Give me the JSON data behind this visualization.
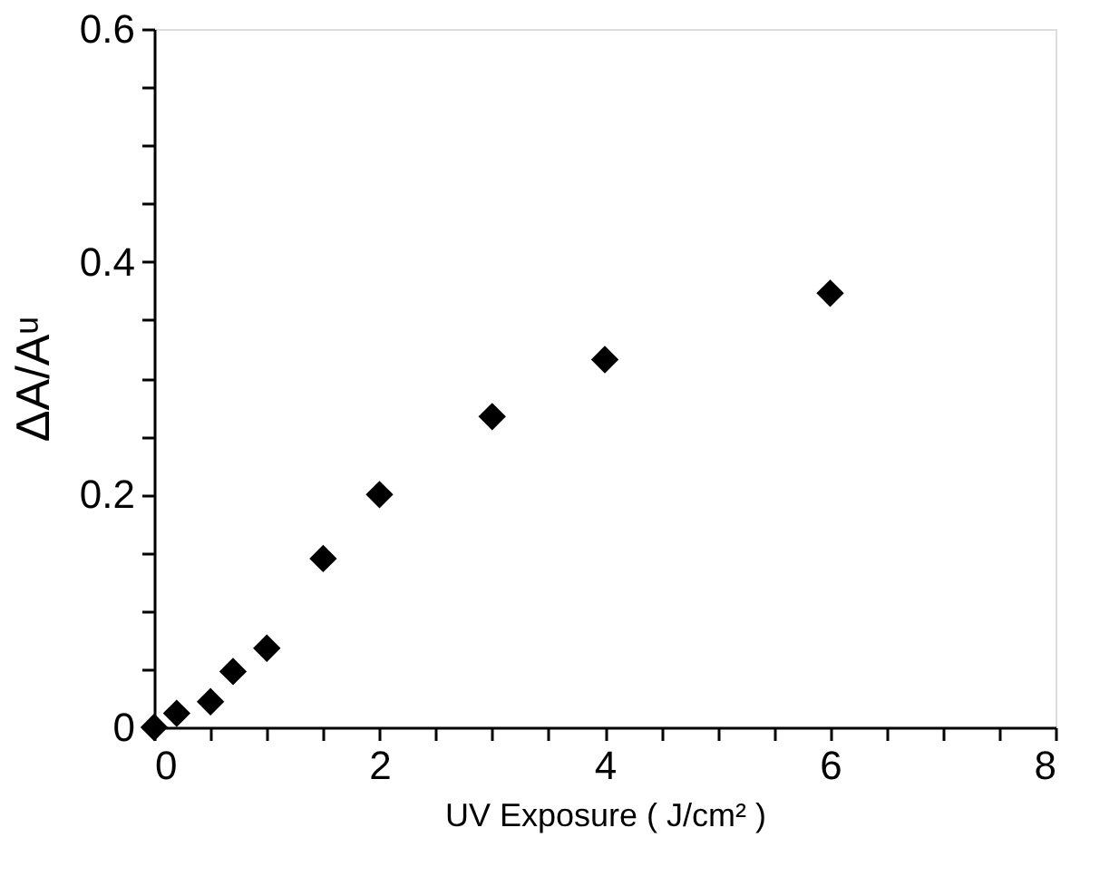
{
  "chart_data": {
    "type": "scatter",
    "xlabel": "UV  Exposure  ( J/cm² )",
    "ylabel": "ΔA/Aᵘ",
    "x": [
      0,
      0.2,
      0.5,
      0.7,
      1.0,
      1.5,
      2,
      3,
      4,
      6
    ],
    "series": [
      {
        "color": "#000000",
        "values": [
          0,
          0.012,
          0.022,
          0.048,
          0.068,
          0.145,
          0.2,
          0.267,
          0.316,
          0.373
        ]
      }
    ],
    "marker": "diamond",
    "grid": false,
    "xlim": [
      0,
      8
    ],
    "ylim": [
      0,
      0.6
    ],
    "xticks": [
      0,
      {
        "value": 0.5,
        "label": null
      },
      {
        "value": 1,
        "label": null
      },
      {
        "value": 1.5,
        "label": null
      },
      2,
      {
        "value": 2.5,
        "label": null
      },
      {
        "value": 3,
        "label": null
      },
      {
        "value": 3.5,
        "label": null
      },
      4,
      {
        "value": 4.5,
        "label": null
      },
      {
        "value": 5,
        "label": null
      },
      {
        "value": 5.5,
        "label": null
      },
      6,
      {
        "value": 6.5,
        "label": null
      },
      {
        "value": 7,
        "label": null
      },
      {
        "value": 7.5,
        "label": null
      },
      8
    ],
    "yticks": [
      {
        "value": 0,
        "label": "0"
      },
      {
        "value": 0.05,
        "label": null
      },
      {
        "value": 0.1,
        "label": null
      },
      {
        "value": 0.15,
        "label": null
      },
      0.2,
      {
        "value": 0.25,
        "label": null
      },
      {
        "value": 0.3,
        "label": null
      },
      {
        "value": 0.35,
        "label": null
      },
      0.4,
      {
        "value": 0.45,
        "label": null
      },
      {
        "value": 0.5,
        "label": null
      },
      {
        "value": 0.55,
        "label": null
      },
      0.6
    ]
  }
}
